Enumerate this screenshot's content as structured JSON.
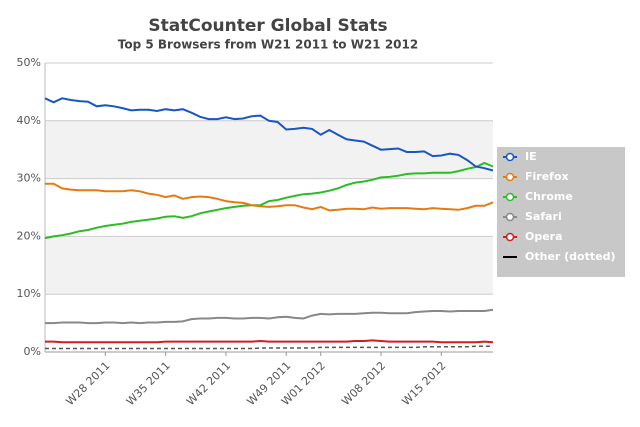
{
  "chart_data": {
    "type": "line",
    "title": "StatCounter Global Stats",
    "subtitle": "Top 5 Browsers from W21 2011 to W21 2012",
    "categories": [
      null,
      null,
      null,
      null,
      null,
      null,
      null,
      "W28 2011",
      null,
      null,
      null,
      null,
      null,
      null,
      "W35 2011",
      null,
      null,
      null,
      null,
      null,
      null,
      "W42 2011",
      null,
      null,
      null,
      null,
      null,
      null,
      "W49 2011",
      null,
      null,
      null,
      "W01 2012",
      null,
      null,
      null,
      null,
      null,
      null,
      "W08 2012",
      null,
      null,
      null,
      null,
      null,
      null,
      "W15 2012",
      null,
      null,
      null,
      null,
      null,
      null
    ],
    "ylim": [
      0,
      50
    ],
    "yticks": [
      {
        "value": 0,
        "label": "0%"
      },
      {
        "value": 10,
        "label": "10%"
      },
      {
        "value": 20,
        "label": "20%"
      },
      {
        "value": 30,
        "label": "30%"
      },
      {
        "value": 40,
        "label": "40%"
      },
      {
        "value": 50,
        "label": "50%"
      }
    ],
    "grid": true,
    "alternate_bands": true,
    "legend": "right",
    "series": [
      {
        "name": "IE",
        "color": "#1757c1",
        "values": [
          43.9,
          43.2,
          43.9,
          43.6,
          43.4,
          43.3,
          42.5,
          42.7,
          42.5,
          42.2,
          41.8,
          41.9,
          41.9,
          41.7,
          42.0,
          41.8,
          42.0,
          41.4,
          40.7,
          40.3,
          40.3,
          40.6,
          40.3,
          40.4,
          40.8,
          40.9,
          40.0,
          39.8,
          38.5,
          38.6,
          38.8,
          38.6,
          37.6,
          38.4,
          37.6,
          36.8,
          36.6,
          36.4,
          35.7,
          35.0,
          35.1,
          35.2,
          34.6,
          34.6,
          34.7,
          33.9,
          34.0,
          34.3,
          34.1,
          33.2,
          32.1,
          31.8,
          31.4
        ]
      },
      {
        "name": "Firefox",
        "color": "#e57a10",
        "values": [
          29.1,
          29.1,
          28.3,
          28.1,
          28.0,
          28.0,
          28.0,
          27.8,
          27.8,
          27.8,
          28.0,
          27.8,
          27.4,
          27.2,
          26.8,
          27.1,
          26.5,
          26.8,
          26.9,
          26.8,
          26.5,
          26.1,
          25.9,
          25.8,
          25.4,
          25.2,
          25.1,
          25.2,
          25.4,
          25.4,
          25.0,
          24.7,
          25.1,
          24.5,
          24.6,
          24.8,
          24.8,
          24.7,
          25.0,
          24.8,
          24.9,
          24.9,
          24.9,
          24.8,
          24.7,
          24.9,
          24.8,
          24.7,
          24.6,
          24.9,
          25.3,
          25.3,
          25.9
        ]
      },
      {
        "name": "Chrome",
        "color": "#2dbd23",
        "values": [
          19.7,
          20.0,
          20.2,
          20.5,
          20.9,
          21.1,
          21.5,
          21.8,
          22.0,
          22.2,
          22.5,
          22.7,
          22.9,
          23.1,
          23.4,
          23.5,
          23.2,
          23.5,
          24.0,
          24.3,
          24.6,
          24.9,
          25.1,
          25.3,
          25.4,
          25.4,
          26.1,
          26.3,
          26.7,
          27.0,
          27.3,
          27.4,
          27.6,
          27.9,
          28.3,
          28.9,
          29.3,
          29.5,
          29.8,
          30.2,
          30.3,
          30.5,
          30.8,
          30.9,
          30.9,
          31.0,
          31.0,
          31.0,
          31.3,
          31.7,
          32.0,
          32.7,
          32.1
        ]
      },
      {
        "name": "Safari",
        "color": "#888888",
        "values": [
          5.0,
          5.0,
          5.1,
          5.1,
          5.1,
          5.0,
          5.0,
          5.1,
          5.1,
          5.0,
          5.1,
          5.0,
          5.1,
          5.1,
          5.2,
          5.2,
          5.3,
          5.7,
          5.8,
          5.8,
          5.9,
          5.9,
          5.8,
          5.8,
          5.9,
          5.9,
          5.8,
          6.0,
          6.1,
          5.9,
          5.8,
          6.3,
          6.6,
          6.5,
          6.6,
          6.6,
          6.6,
          6.7,
          6.8,
          6.8,
          6.7,
          6.7,
          6.7,
          6.9,
          7.0,
          7.1,
          7.1,
          7.0,
          7.1,
          7.1,
          7.1,
          7.1,
          7.3
        ]
      },
      {
        "name": "Opera",
        "color": "#d41d1d",
        "values": [
          1.8,
          1.8,
          1.7,
          1.7,
          1.7,
          1.7,
          1.7,
          1.7,
          1.7,
          1.7,
          1.7,
          1.7,
          1.7,
          1.7,
          1.8,
          1.8,
          1.8,
          1.8,
          1.8,
          1.8,
          1.8,
          1.8,
          1.8,
          1.8,
          1.8,
          1.9,
          1.8,
          1.8,
          1.8,
          1.8,
          1.8,
          1.8,
          1.8,
          1.8,
          1.8,
          1.8,
          1.9,
          1.9,
          2.0,
          1.9,
          1.8,
          1.8,
          1.8,
          1.8,
          1.8,
          1.8,
          1.7,
          1.7,
          1.7,
          1.7,
          1.7,
          1.8,
          1.7
        ]
      },
      {
        "name": "Other (dotted)",
        "color": "#555555",
        "line_style": "dashed",
        "values": [
          0.6,
          0.6,
          0.6,
          0.6,
          0.6,
          0.6,
          0.6,
          0.6,
          0.6,
          0.6,
          0.6,
          0.6,
          0.6,
          0.6,
          0.6,
          0.6,
          0.6,
          0.6,
          0.6,
          0.6,
          0.6,
          0.6,
          0.6,
          0.6,
          0.6,
          0.7,
          0.7,
          0.7,
          0.7,
          0.7,
          0.7,
          0.7,
          0.8,
          0.8,
          0.8,
          0.8,
          0.8,
          0.8,
          0.8,
          0.8,
          0.8,
          0.8,
          0.8,
          0.8,
          0.9,
          0.9,
          0.9,
          0.9,
          0.9,
          0.9,
          1.0,
          1.0,
          1.0
        ]
      }
    ]
  }
}
